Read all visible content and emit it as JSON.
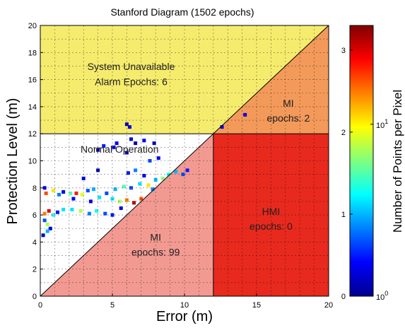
{
  "chart_data": {
    "type": "heatmap",
    "title": "Stanford Diagram (1502 epochs)",
    "xlabel": "Error (m)",
    "ylabel": "Protection Level (m)",
    "xlim": [
      0,
      20
    ],
    "ylim": [
      0,
      20
    ],
    "x_ticks": [
      "0",
      "5",
      "10",
      "15",
      "20"
    ],
    "y_ticks": [
      "0",
      "2",
      "4",
      "6",
      "8",
      "10",
      "12",
      "14",
      "16",
      "18",
      "20"
    ],
    "alarm_limit": 12,
    "grid": true,
    "regions": [
      {
        "name": "System Unavailable",
        "line1": "System Unavailable",
        "line2": "Alarm Epochs: 6",
        "color": "#f5ec6e"
      },
      {
        "name": "MI (unavailable)",
        "line1": "MI",
        "line2": "epochs: 2",
        "color": "#f39a5a"
      },
      {
        "name": "Normal Operation",
        "line1": "Normal Operation",
        "line2": "",
        "color": "#ffffff"
      },
      {
        "name": "HMI",
        "line1": "HMI",
        "line2": "epochs: 0",
        "color": "#e8291e"
      },
      {
        "name": "MI",
        "line1": "MI",
        "line2": "epochs: 99",
        "color": "#f29a92"
      }
    ],
    "colorbar": {
      "label": "Number of Points per Pixel",
      "scale": "log",
      "left_ticks": [
        "0",
        "1",
        "2",
        "3"
      ],
      "right_ticks": [
        "10^0",
        "10^1"
      ]
    },
    "points": [
      {
        "x": 0.3,
        "y": 5.6,
        "c": 0.2
      },
      {
        "x": 0.5,
        "y": 5.3,
        "c": 0.55
      },
      {
        "x": 0.7,
        "y": 5.0,
        "c": 0.1
      },
      {
        "x": 0.3,
        "y": 6.1,
        "c": 0.75
      },
      {
        "x": 0.6,
        "y": 6.3,
        "c": 0.9
      },
      {
        "x": 0.9,
        "y": 6.0,
        "c": 0.4
      },
      {
        "x": 1.2,
        "y": 6.2,
        "c": 0.15
      },
      {
        "x": 1.6,
        "y": 6.4,
        "c": 0.35
      },
      {
        "x": 0.2,
        "y": 4.5,
        "c": 0.05
      },
      {
        "x": 0.4,
        "y": 7.6,
        "c": 0.8
      },
      {
        "x": 0.9,
        "y": 7.8,
        "c": 0.65
      },
      {
        "x": 1.3,
        "y": 7.5,
        "c": 0.25
      },
      {
        "x": 0.3,
        "y": 8.0,
        "c": 0.1
      },
      {
        "x": 1.6,
        "y": 7.7,
        "c": 0.1
      },
      {
        "x": 0.5,
        "y": 4.8,
        "c": 0.3
      },
      {
        "x": 2.1,
        "y": 7.6,
        "c": 0.45
      },
      {
        "x": 2.5,
        "y": 7.6,
        "c": 0.85
      },
      {
        "x": 2.9,
        "y": 7.5,
        "c": 0.6
      },
      {
        "x": 3.3,
        "y": 7.8,
        "c": 0.2
      },
      {
        "x": 3.7,
        "y": 7.9,
        "c": 0.3
      },
      {
        "x": 2.3,
        "y": 7.2,
        "c": 0.12
      },
      {
        "x": 2.2,
        "y": 6.4,
        "c": 0.35
      },
      {
        "x": 2.8,
        "y": 6.3,
        "c": 0.55
      },
      {
        "x": 3.4,
        "y": 6.1,
        "c": 0.25
      },
      {
        "x": 3.9,
        "y": 6.3,
        "c": 0.4
      },
      {
        "x": 4.5,
        "y": 6.1,
        "c": 0.2
      },
      {
        "x": 5.0,
        "y": 6.0,
        "c": 0.15
      },
      {
        "x": 3.5,
        "y": 7.0,
        "c": 0.1
      },
      {
        "x": 4.1,
        "y": 7.3,
        "c": 0.35
      },
      {
        "x": 4.6,
        "y": 7.6,
        "c": 0.2
      },
      {
        "x": 5.0,
        "y": 7.2,
        "c": 0.35
      },
      {
        "x": 5.5,
        "y": 7.0,
        "c": 0.55
      },
      {
        "x": 6.0,
        "y": 7.1,
        "c": 0.75
      },
      {
        "x": 6.5,
        "y": 6.9,
        "c": 0.95
      },
      {
        "x": 7.0,
        "y": 7.2,
        "c": 0.8
      },
      {
        "x": 5.2,
        "y": 7.9,
        "c": 0.3
      },
      {
        "x": 5.8,
        "y": 8.1,
        "c": 0.45
      },
      {
        "x": 6.3,
        "y": 8.0,
        "c": 0.2
      },
      {
        "x": 6.9,
        "y": 8.3,
        "c": 0.35
      },
      {
        "x": 7.5,
        "y": 8.2,
        "c": 0.65
      },
      {
        "x": 7.8,
        "y": 7.9,
        "c": 0.25
      },
      {
        "x": 5.6,
        "y": 6.5,
        "c": 0.1
      },
      {
        "x": 6.1,
        "y": 9.1,
        "c": 0.15
      },
      {
        "x": 6.6,
        "y": 9.3,
        "c": 0.25
      },
      {
        "x": 7.2,
        "y": 8.9,
        "c": 0.1
      },
      {
        "x": 8.0,
        "y": 8.6,
        "c": 0.3
      },
      {
        "x": 8.5,
        "y": 8.7,
        "c": 0.5
      },
      {
        "x": 8.9,
        "y": 9.0,
        "c": 0.4
      },
      {
        "x": 9.4,
        "y": 9.2,
        "c": 0.3
      },
      {
        "x": 9.9,
        "y": 9.0,
        "c": 0.2
      },
      {
        "x": 10.2,
        "y": 9.3,
        "c": 0.15
      },
      {
        "x": 7.6,
        "y": 10.0,
        "c": 0.2
      },
      {
        "x": 8.2,
        "y": 10.2,
        "c": 0.1
      },
      {
        "x": 6.0,
        "y": 10.6,
        "c": 0.05
      },
      {
        "x": 6.3,
        "y": 11.6,
        "c": 0.08
      },
      {
        "x": 6.6,
        "y": 11.3,
        "c": 0.05
      },
      {
        "x": 7.2,
        "y": 11.5,
        "c": 0.1
      },
      {
        "x": 7.9,
        "y": 11.3,
        "c": 0.05
      },
      {
        "x": 6.0,
        "y": 12.7,
        "c": 0.05
      },
      {
        "x": 6.2,
        "y": 12.5,
        "c": 0.1
      },
      {
        "x": 4.4,
        "y": 11.1,
        "c": 0.15
      },
      {
        "x": 5.1,
        "y": 11.0,
        "c": 0.1
      },
      {
        "x": 4.0,
        "y": 10.8,
        "c": 0.05
      },
      {
        "x": 4.0,
        "y": 9.3,
        "c": 0.05
      },
      {
        "x": 5.3,
        "y": 11.3,
        "c": 0.12
      },
      {
        "x": 3.0,
        "y": 8.7,
        "c": 0.1
      },
      {
        "x": 12.6,
        "y": 12.5,
        "c": 0.1
      },
      {
        "x": 14.2,
        "y": 13.4,
        "c": 0.1
      }
    ]
  }
}
